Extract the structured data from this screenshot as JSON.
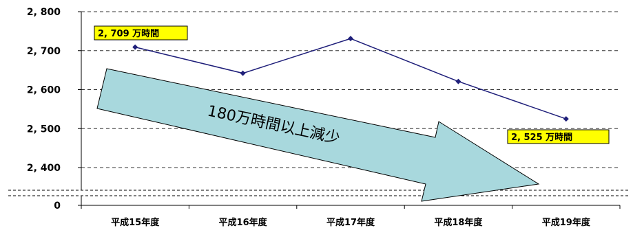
{
  "chart_data": {
    "type": "line",
    "categories": [
      "平成15年度",
      "平成16年度",
      "平成17年度",
      "平成18年度",
      "平成19年度"
    ],
    "values": [
      2709,
      2642,
      2731,
      2621,
      2525
    ],
    "y_ticks": [
      "0",
      "2, 400",
      "2, 500",
      "2, 600",
      "2, 700",
      "2, 800"
    ],
    "ylim": [
      2400,
      2800
    ],
    "axis_break": true,
    "grid": "dashed horizontal",
    "line_color": "#1f1f7a",
    "arrow_color": "#a8d8dd",
    "callout_color": "#ffff00",
    "annotations": {
      "first": "2, 709 万時間",
      "last": "2, 525 万時間",
      "arrow_label": "180万時間以上減少"
    }
  }
}
